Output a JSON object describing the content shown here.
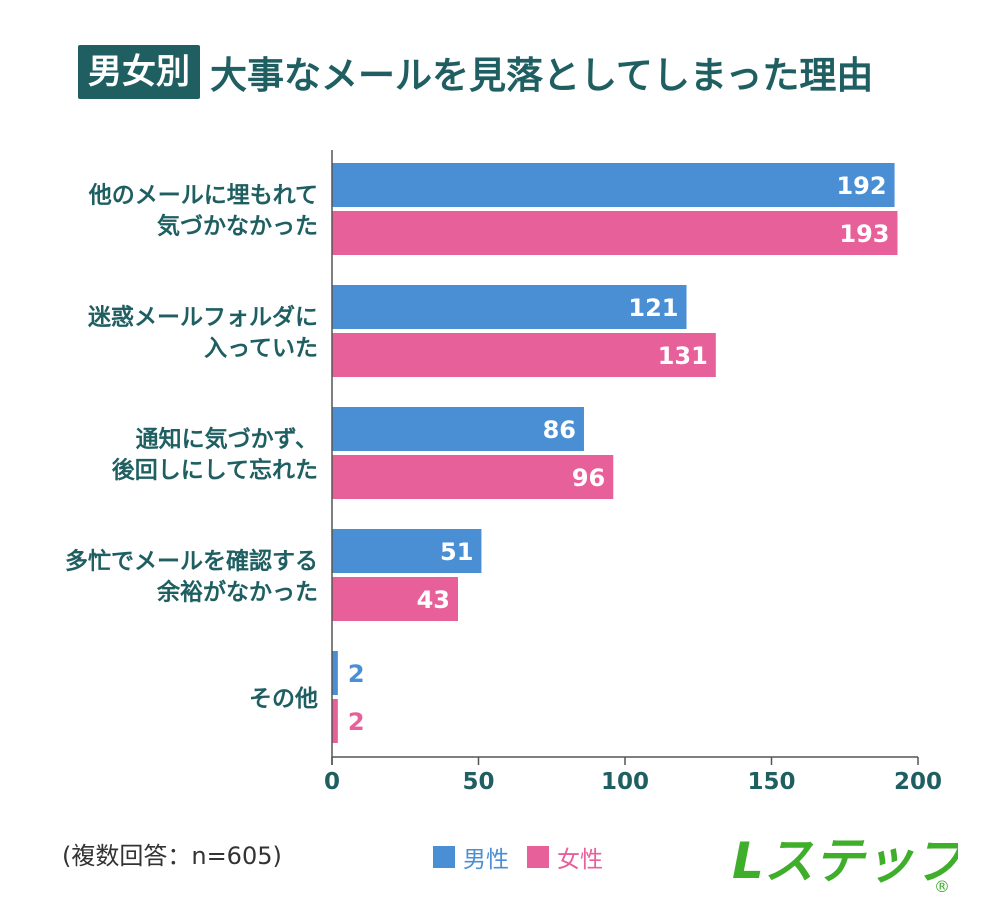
{
  "title": {
    "tag": "男女別",
    "main": "大事なメールを見落としてしまった理由"
  },
  "note": "(複数回答：n=605)",
  "legend": [
    {
      "label": "男性",
      "color": "#4a8fd4"
    },
    {
      "label": "女性",
      "color": "#e8609a"
    }
  ],
  "logo": {
    "text": "Lステップ",
    "mark": "®",
    "color": "#3fae2a"
  },
  "colors": {
    "accent": "#1f5f62",
    "male": "#4a8fd4",
    "female": "#e8609a",
    "male_label": "#4a8fd4",
    "female_label": "#e8609a"
  },
  "chart_data": {
    "type": "bar",
    "orientation": "horizontal",
    "categories": [
      [
        "他のメールに埋もれて",
        "気づかなかった"
      ],
      [
        "迷惑メールフォルダに",
        "入っていた"
      ],
      [
        "通知に気づかず、",
        "後回しにして忘れた"
      ],
      [
        "多忙でメールを確認する",
        "余裕がなかった"
      ],
      [
        "その他"
      ]
    ],
    "series": [
      {
        "name": "男性",
        "values": [
          192,
          121,
          86,
          51,
          2
        ]
      },
      {
        "name": "女性",
        "values": [
          193,
          131,
          96,
          43,
          2
        ]
      }
    ],
    "xlim": [
      0,
      200
    ],
    "xticks": [
      0,
      50,
      100,
      150,
      200
    ],
    "grid": false,
    "legend_position": "bottom"
  }
}
